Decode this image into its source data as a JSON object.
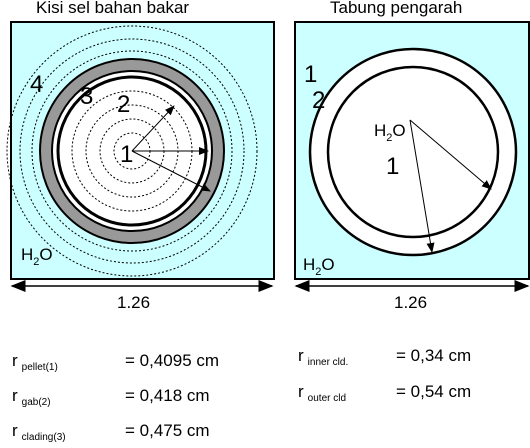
{
  "left_panel": {
    "title": "Kisi sel bahan bakar",
    "region_labels": [
      "4",
      "3",
      "2",
      "1"
    ],
    "water_label_main": "H",
    "water_label_sub": "2",
    "water_label_tail": "O",
    "pitch": "1.26"
  },
  "right_panel": {
    "title": "Tabung pengarah",
    "region_labels": [
      "1",
      "2",
      "1"
    ],
    "water_label_main": "H",
    "water_label_sub": "2",
    "water_label_tail": "O",
    "pitch": "1.26"
  },
  "legend_left": [
    {
      "symbol": "r",
      "subscript": "pellet(1)",
      "value": "= 0,4095 cm"
    },
    {
      "symbol": "r",
      "subscript": "gab(2)",
      "value": "= 0,418 cm"
    },
    {
      "symbol": "r",
      "subscript": "clading(3)",
      "value": "= 0,475 cm"
    }
  ],
  "legend_right": [
    {
      "symbol": "r",
      "subscript": "inner cld.",
      "value": "= 0,34 cm"
    },
    {
      "symbol": "r",
      "subscript": "outer cld",
      "value": "= 0,54 cm"
    }
  ],
  "colors": {
    "cell_fill": "#ccffff",
    "cladding_fill": "#999999",
    "pellet_fill": "#ffffff",
    "stroke": "#000000"
  }
}
